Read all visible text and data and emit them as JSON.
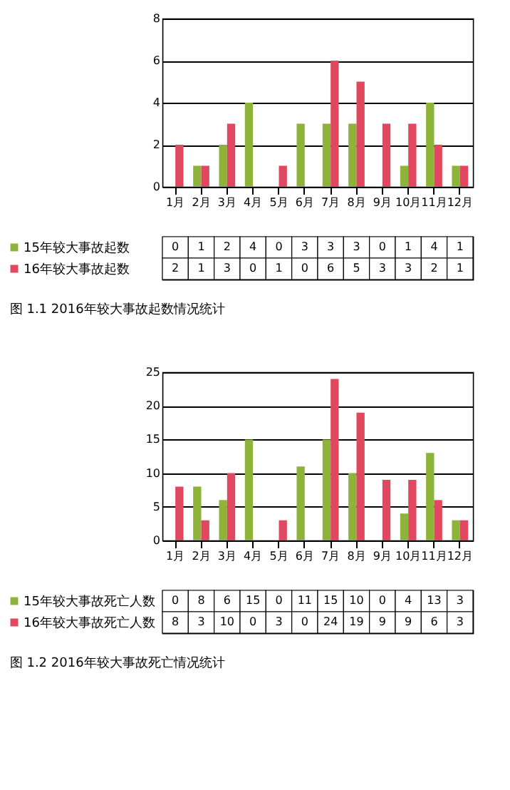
{
  "chart_data": [
    {
      "type": "bar",
      "categories": [
        "1月",
        "2月",
        "3月",
        "4月",
        "5月",
        "6月",
        "7月",
        "8月",
        "9月",
        "10月",
        "11月",
        "12月"
      ],
      "series": [
        {
          "name": "15年较大事故起数",
          "color": "#8db33a",
          "values": [
            0,
            1,
            2,
            4,
            0,
            3,
            3,
            3,
            0,
            1,
            4,
            1
          ]
        },
        {
          "name": "16年较大事故起数",
          "color": "#e0485f",
          "values": [
            2,
            1,
            3,
            0,
            1,
            0,
            6,
            5,
            3,
            3,
            2,
            1
          ]
        }
      ],
      "ylim": [
        0,
        8
      ],
      "yticks": [
        0,
        2,
        4,
        6,
        8
      ],
      "grid": "y",
      "data_labels": true,
      "legend": "bottom left",
      "annotations": [
        "图 1.1  2016年较大事故起数情况统计"
      ]
    },
    {
      "type": "bar",
      "categories": [
        "1月",
        "2月",
        "3月",
        "4月",
        "5月",
        "6月",
        "7月",
        "8月",
        "9月",
        "10月",
        "11月",
        "12月"
      ],
      "series": [
        {
          "name": "15年较大事故死亡人数",
          "color": "#8db33a",
          "values": [
            0,
            8,
            6,
            15,
            0,
            11,
            15,
            10,
            0,
            4,
            13,
            3
          ]
        },
        {
          "name": "16年较大事故死亡人数",
          "color": "#e0485f",
          "values": [
            8,
            3,
            10,
            0,
            3,
            0,
            24,
            19,
            9,
            9,
            6,
            3
          ]
        }
      ],
      "ylim": [
        0,
        25
      ],
      "yticks": [
        0,
        5,
        10,
        15,
        20,
        25
      ],
      "grid": "y",
      "data_labels": true,
      "legend": "bottom left",
      "annotations": [
        "图 1.2  2016年较大事故死亡情况统计"
      ]
    }
  ]
}
